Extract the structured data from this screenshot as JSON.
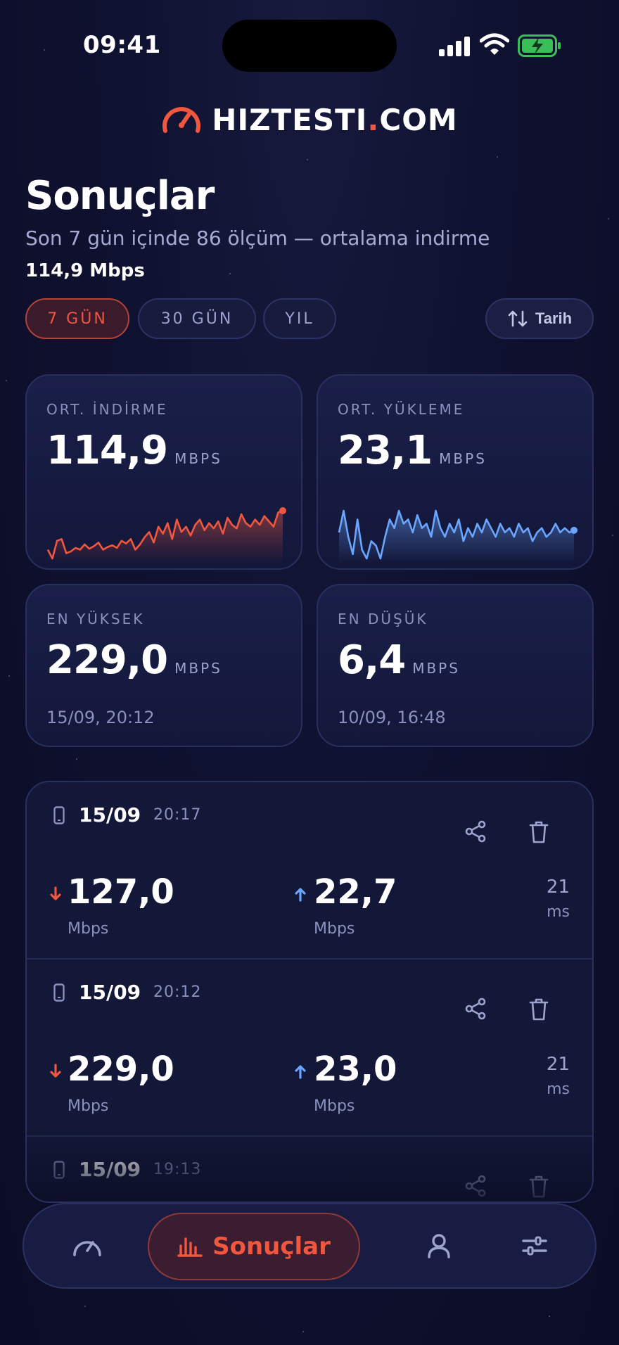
{
  "status_bar": {
    "time": "09:41"
  },
  "brand": {
    "name_part1": "HIZTESTI",
    "name_dot": ".",
    "name_part2": "COM"
  },
  "header": {
    "title": "Sonuçlar",
    "subtitle": "Son 7 gün içinde 86 ölçüm — ortalama indirme",
    "subtitle_value": "114,9 Mbps"
  },
  "filters": {
    "chips": [
      {
        "label": "7 GÜN",
        "active": true
      },
      {
        "label": "30 GÜN",
        "active": false
      },
      {
        "label": "YIL",
        "active": false
      }
    ],
    "sort_label": "Tarih"
  },
  "stats": {
    "avg_download": {
      "label": "ORT. İNDİRME",
      "value": "114,9",
      "unit": "MBPS"
    },
    "avg_upload": {
      "label": "ORT. YÜKLEME",
      "value": "23,1",
      "unit": "MBPS"
    },
    "max": {
      "label": "EN YÜKSEK",
      "value": "229,0",
      "unit": "MBPS",
      "date": "15/09, 20:12"
    },
    "min": {
      "label": "EN DÜŞÜK",
      "value": "6,4",
      "unit": "MBPS",
      "date": "10/09, 16:48"
    }
  },
  "sparklines": {
    "download": [
      70,
      60,
      80,
      82,
      66,
      68,
      72,
      70,
      76,
      71,
      74,
      78,
      70,
      73,
      75,
      72,
      80,
      77,
      82,
      70,
      76,
      84,
      90,
      78,
      96,
      88,
      100,
      82,
      104,
      90,
      96,
      86,
      98,
      104,
      92,
      100,
      94,
      102,
      88,
      106,
      98,
      94,
      110,
      100,
      96,
      104,
      98,
      108,
      102,
      96,
      112,
      114
    ],
    "upload": [
      24,
      34,
      22,
      14,
      30,
      16,
      12,
      20,
      18,
      12,
      22,
      30,
      26,
      34,
      28,
      30,
      24,
      32,
      26,
      28,
      22,
      34,
      26,
      22,
      28,
      24,
      30,
      20,
      26,
      22,
      28,
      24,
      30,
      26,
      22,
      28,
      24,
      26,
      22,
      28,
      24,
      26,
      20,
      24,
      26,
      22,
      24,
      28,
      24,
      26,
      24,
      25
    ]
  },
  "results": [
    {
      "date": "15/09",
      "time": "20:17",
      "download": "127,0",
      "upload": "22,7",
      "unit": "Mbps",
      "ping": "21",
      "ping_unit": "ms"
    },
    {
      "date": "15/09",
      "time": "20:12",
      "download": "229,0",
      "upload": "23,0",
      "unit": "Mbps",
      "ping": "21",
      "ping_unit": "ms"
    },
    {
      "date": "15/09",
      "time": "19:13",
      "download": "",
      "upload": "",
      "unit": "",
      "ping": "",
      "ping_unit": ""
    }
  ],
  "nav": {
    "active_label": "Sonuçlar"
  },
  "colors": {
    "accent": "#f1563f",
    "upload": "#6aa6ff",
    "background": "#0f1130"
  }
}
